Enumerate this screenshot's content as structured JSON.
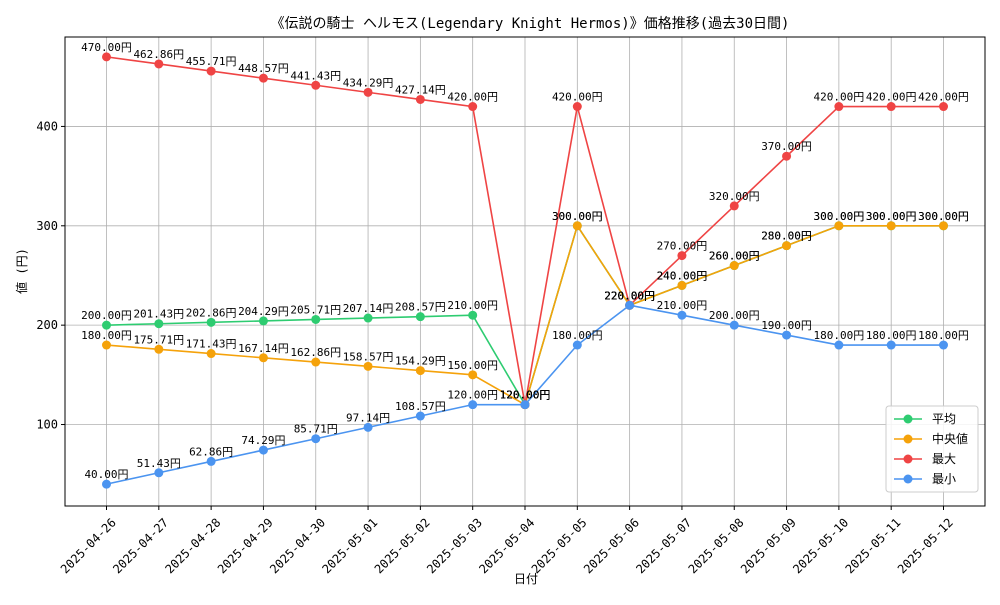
{
  "chart_data": {
    "type": "line",
    "title": "《伝説の騎士 ヘルモス(Legendary Knight Hermos)》価格推移(過去30日間)",
    "xlabel": "日付",
    "ylabel": "値 (円)",
    "ylim": [
      18,
      490
    ],
    "yticks": [
      100,
      200,
      300,
      400
    ],
    "grid": true,
    "legend_position": "lower-right",
    "value_suffix": "円",
    "categories": [
      "2025-04-26",
      "2025-04-27",
      "2025-04-28",
      "2025-04-29",
      "2025-04-30",
      "2025-05-01",
      "2025-05-02",
      "2025-05-03",
      "2025-05-04",
      "2025-05-05",
      "2025-05-06",
      "2025-05-07",
      "2025-05-08",
      "2025-05-09",
      "2025-05-10",
      "2025-05-11",
      "2025-05-12"
    ],
    "series": [
      {
        "key": "avg",
        "name": "平均",
        "color": "#2ecc71",
        "values": [
          200.0,
          201.43,
          202.86,
          204.29,
          205.71,
          207.14,
          208.57,
          210.0,
          120.0,
          300.0,
          220.0,
          240.0,
          260.0,
          280.0,
          300.0,
          300.0,
          300.0
        ]
      },
      {
        "key": "median",
        "name": "中央値",
        "color": "#f5a20a",
        "values": [
          180.0,
          175.71,
          171.43,
          167.14,
          162.86,
          158.57,
          154.29,
          150.0,
          120.0,
          300.0,
          220.0,
          240.0,
          260.0,
          280.0,
          300.0,
          300.0,
          300.0
        ]
      },
      {
        "key": "max",
        "name": "最大",
        "color": "#ef4444",
        "values": [
          470.0,
          462.86,
          455.71,
          448.57,
          441.43,
          434.29,
          427.14,
          420.0,
          120.0,
          420.0,
          220.0,
          270.0,
          320.0,
          370.0,
          420.0,
          420.0,
          420.0
        ]
      },
      {
        "key": "min",
        "name": "最小",
        "color": "#4b94f0",
        "values": [
          40.0,
          51.43,
          62.86,
          74.29,
          85.71,
          97.14,
          108.57,
          120.0,
          120.0,
          180.0,
          220.0,
          210.0,
          200.0,
          190.0,
          180.0,
          180.0,
          180.0
        ]
      }
    ]
  }
}
